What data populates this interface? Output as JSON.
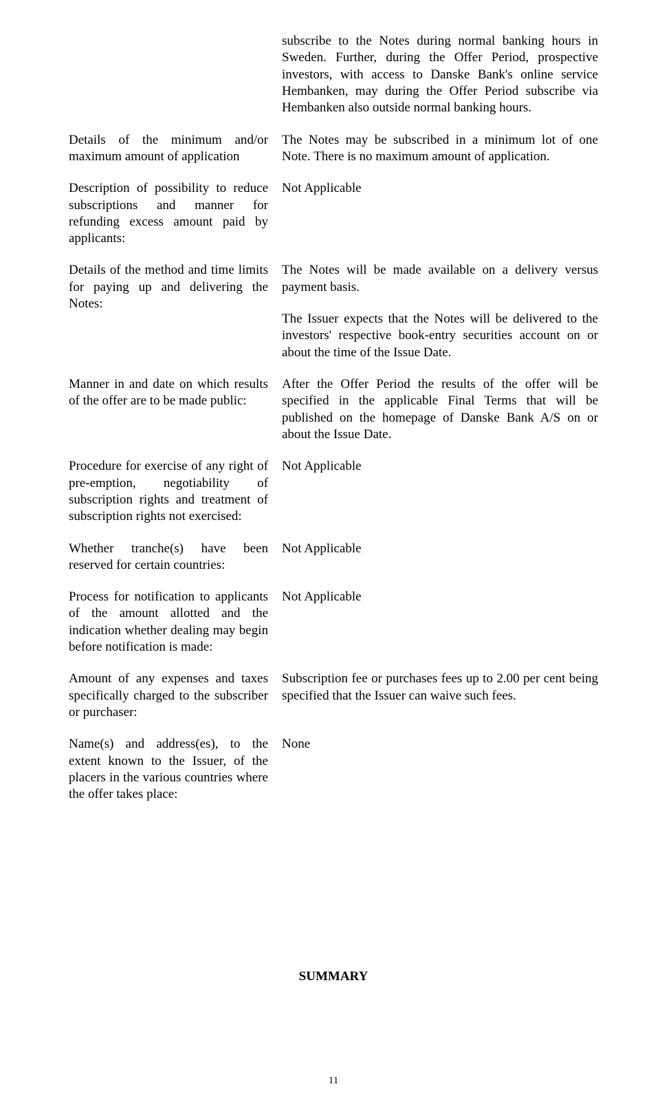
{
  "rows": [
    {
      "left": "",
      "right": [
        "subscribe to the Notes during normal banking hours in Sweden. Further, during the Offer Period, prospective investors, with access to Danske Bank's online service Hembanken, may during the Offer Period subscribe via Hembanken also outside normal banking hours."
      ]
    },
    {
      "left": "Details of the minimum and/or maximum amount of application",
      "right": [
        "The Notes may be subscribed in a minimum lot of one Note. There is no maximum amount of application."
      ]
    },
    {
      "left": "Description of possibility to reduce subscriptions and manner for refunding excess amount paid by applicants:",
      "right": [
        "Not Applicable"
      ]
    },
    {
      "left": "Details of the method and time limits for paying up and delivering the Notes:",
      "right": [
        "The Notes will be made available on a delivery versus payment basis.",
        "The Issuer expects that the Notes will be delivered to the investors' respective book-entry securities account on or about the time of the Issue Date."
      ]
    },
    {
      "left": "Manner in and date on which results of the offer are to be made public:",
      "right": [
        "After the Offer Period the results of the offer will be specified in the applicable Final Terms that will be published on the homepage of Danske Bank A/S on or about the Issue Date."
      ]
    },
    {
      "left": "Procedure for exercise of any right of pre-emption, negotiability of subscription rights and treatment of subscription rights not exercised:",
      "right": [
        "Not Applicable"
      ]
    },
    {
      "left": "Whether tranche(s) have been reserved for certain countries:",
      "right": [
        "Not Applicable"
      ]
    },
    {
      "left": "Process for notification to applicants of the amount allotted and the indication whether dealing may begin before notification is made:",
      "right": [
        "Not Applicable"
      ]
    },
    {
      "left": "Amount of any expenses and taxes specifically charged to the subscriber or purchaser:",
      "right": [
        "Subscription fee or purchases fees up to 2.00 per cent being specified that the Issuer can waive such fees."
      ]
    },
    {
      "left": "Name(s) and address(es), to the extent known to the Issuer, of the placers in the various countries where the offer takes place:",
      "right": [
        "None"
      ]
    }
  ],
  "summary_heading": "SUMMARY",
  "page_number": "11"
}
